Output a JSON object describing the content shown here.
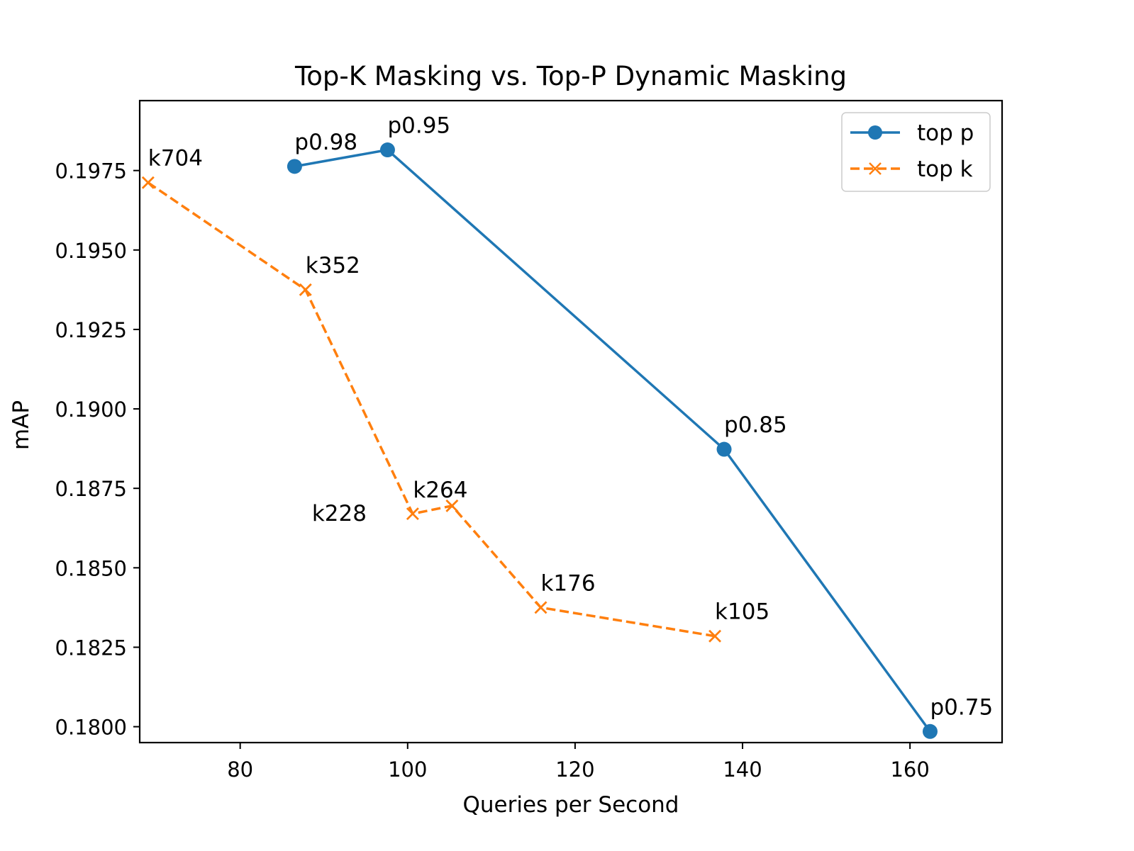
{
  "chart_data": {
    "type": "line",
    "title": "Top-K Masking vs. Top-P Dynamic Masking",
    "xlabel": "Queries per Second",
    "ylabel": "mAP",
    "xlim": [
      68,
      171
    ],
    "ylim": [
      0.1795,
      0.1997
    ],
    "xticks": [
      80,
      100,
      120,
      140,
      160
    ],
    "xtick_labels": [
      "80",
      "100",
      "120",
      "140",
      "160"
    ],
    "yticks": [
      0.18,
      0.1825,
      0.185,
      0.1875,
      0.19,
      0.1925,
      0.195,
      0.1975
    ],
    "ytick_labels": [
      "0.1800",
      "0.1825",
      "0.1850",
      "0.1875",
      "0.1900",
      "0.1925",
      "0.1950",
      "0.1975"
    ],
    "grid": false,
    "legend": "top-right",
    "series": [
      {
        "name": "top p",
        "color": "#1f77b4",
        "marker": "circle",
        "linestyle": "solid",
        "x": [
          86.5,
          97.6,
          137.8,
          162.4
        ],
        "y": [
          0.19763,
          0.19815,
          0.18873,
          0.17985
        ],
        "labels": [
          "p0.98",
          "p0.95",
          "p0.85",
          "p0.75"
        ]
      },
      {
        "name": "top k",
        "color": "#ff7f0e",
        "marker": "x",
        "linestyle": "dashed",
        "x": [
          69.0,
          87.8,
          100.6,
          105.3,
          115.9,
          136.7
        ],
        "y": [
          0.19712,
          0.19375,
          0.1867,
          0.18695,
          0.18375,
          0.18285
        ],
        "labels": [
          "k704",
          "k352",
          "k228",
          "k264",
          "k176",
          "k105"
        ]
      }
    ]
  }
}
